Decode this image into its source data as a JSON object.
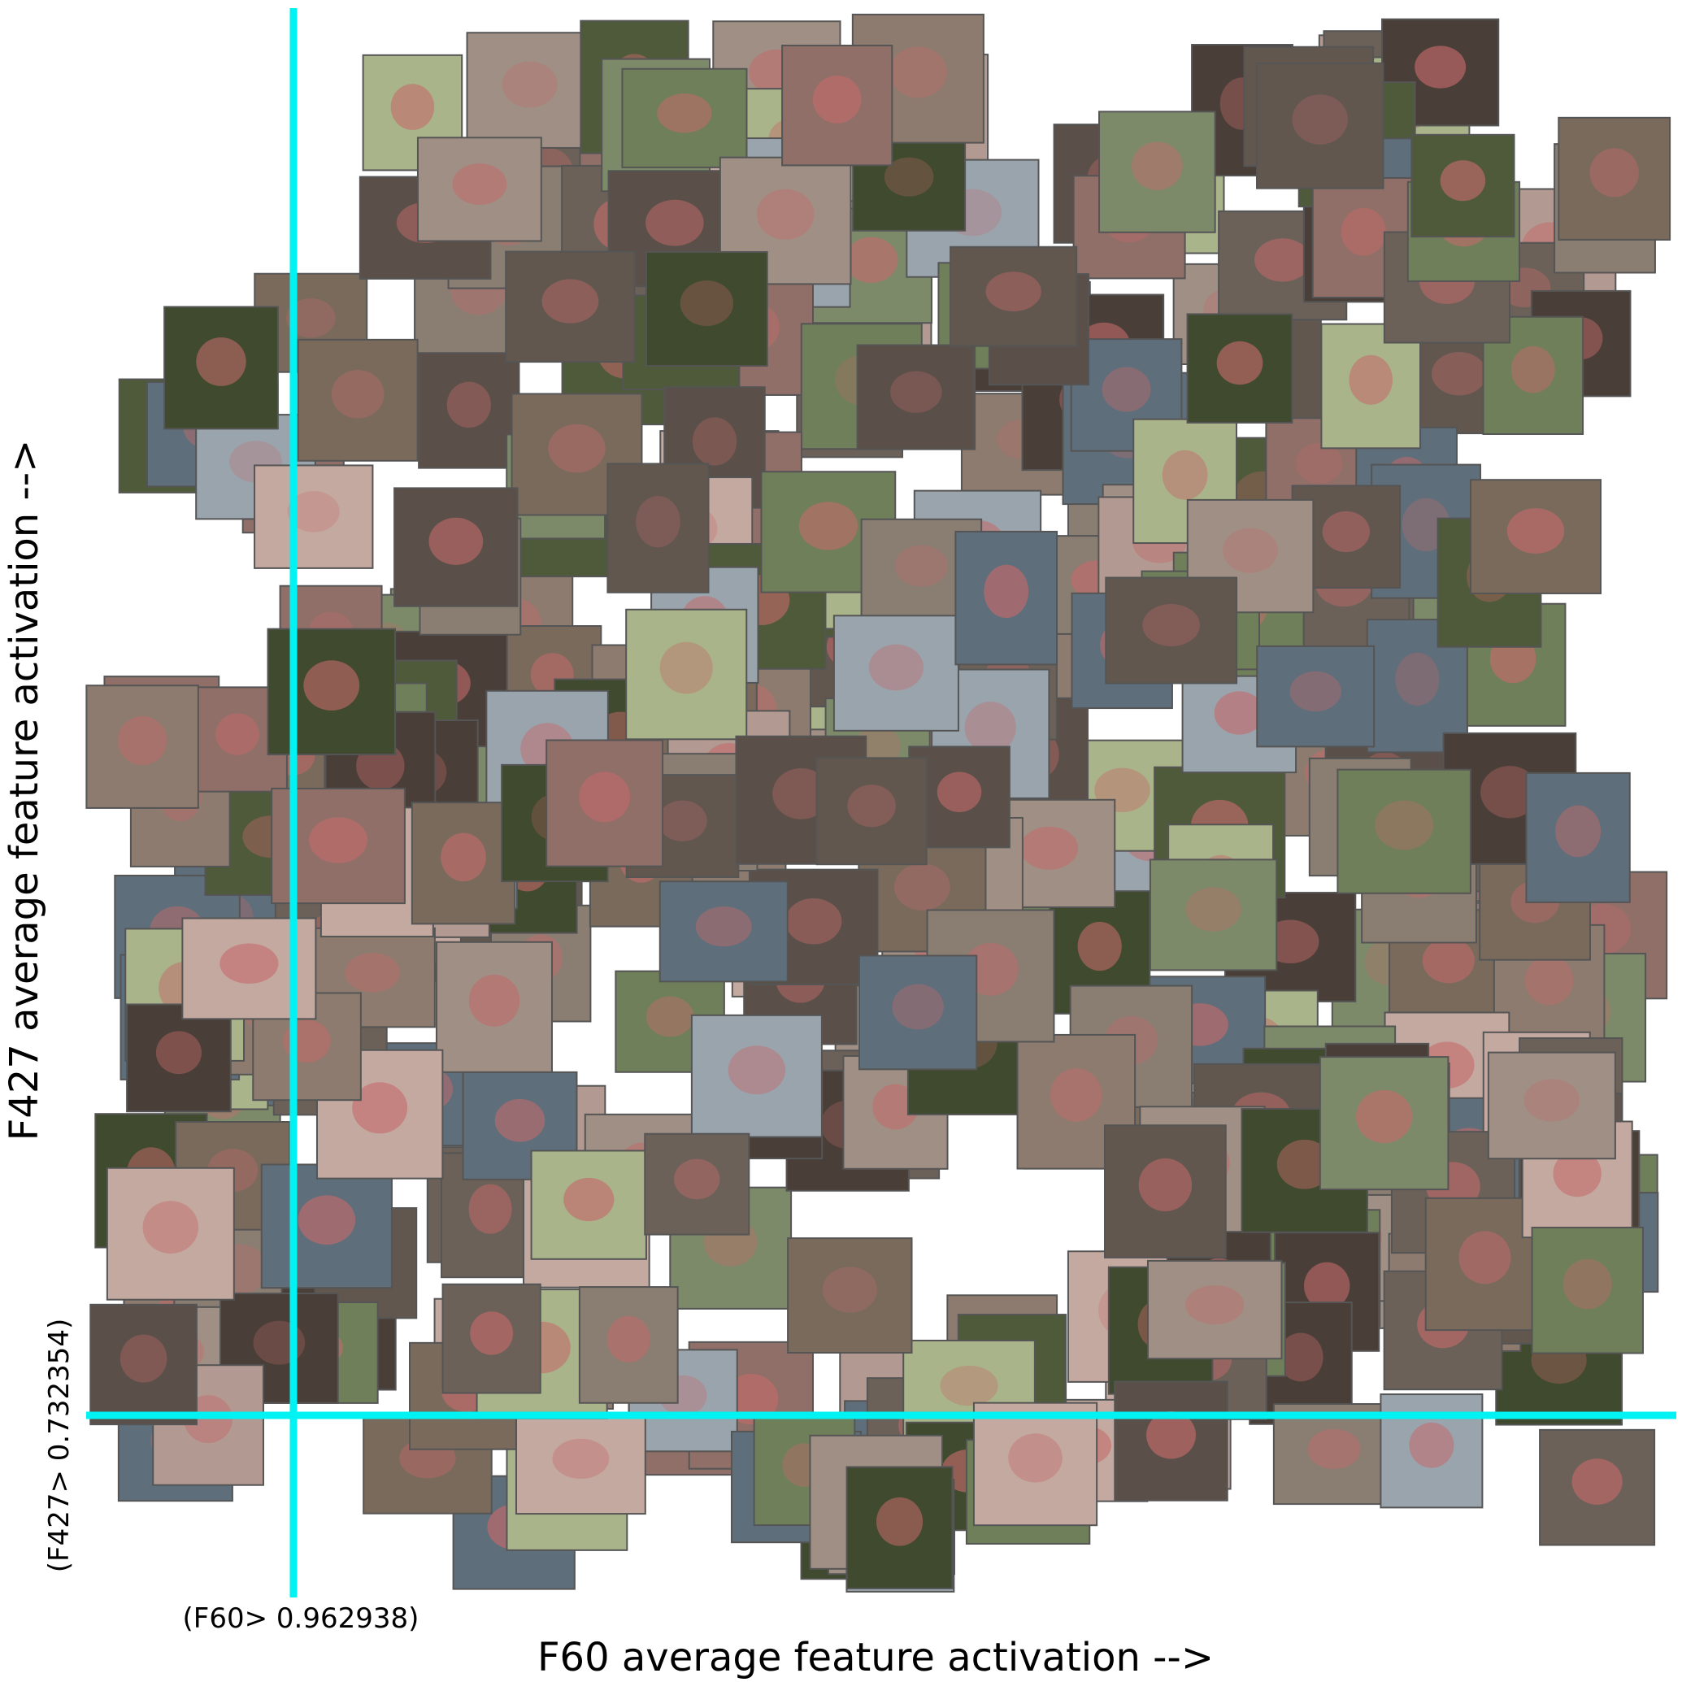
{
  "x_axis_label": "F60 average feature activation -->",
  "y_axis_label": "F427 average feature activation -->",
  "x_threshold_label": "(F60> 0.962938)",
  "y_threshold_label": "(F427> 0.732354)"
}
